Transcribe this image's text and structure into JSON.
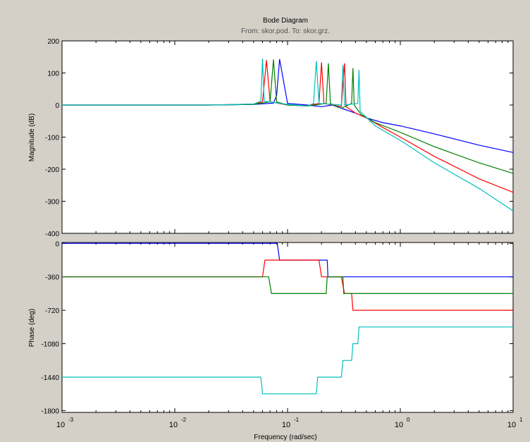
{
  "figure": {
    "background": "#d4d0c8",
    "title": "Bode Diagram",
    "subtitle": "From: skor.pod.  To: skor.grz.",
    "xlabel": "Frequency  (rad/sec)"
  },
  "chart_data": [
    {
      "type": "line",
      "name": "magnitude",
      "ylabel": "Magnitude (dB)",
      "xscale": "log",
      "xlim": [
        0.001,
        10
      ],
      "ylim": [
        -400,
        200
      ],
      "yticks": [
        -400,
        -300,
        -200,
        -100,
        0,
        100,
        200
      ],
      "xticks": [
        0.001,
        0.01,
        0.1,
        1,
        10
      ],
      "xtick_labels": [
        [
          "10",
          "-3"
        ],
        [
          "10",
          "-2"
        ],
        [
          "10",
          "-1"
        ],
        [
          "10",
          "0"
        ],
        [
          "10",
          "1"
        ]
      ],
      "grid": false,
      "series": [
        {
          "color": "#0000ff",
          "x": [
            0.001,
            0.02,
            0.05,
            0.075,
            0.08,
            0.085,
            0.1,
            0.15,
            0.2,
            0.25,
            0.3,
            0.4,
            0.5,
            0.7,
            1,
            2,
            5,
            10
          ],
          "y": [
            0,
            0,
            2,
            6,
            30,
            143,
            5,
            0,
            -5,
            0,
            -10,
            -25,
            -40,
            -55,
            -65,
            -90,
            -125,
            -148
          ]
        },
        {
          "color": "#ff0000",
          "x": [
            0.001,
            0.02,
            0.05,
            0.06,
            0.065,
            0.07,
            0.1,
            0.15,
            0.19,
            0.2,
            0.21,
            0.3,
            0.32,
            0.33,
            0.4,
            0.5,
            0.7,
            1,
            2,
            5,
            10
          ],
          "y": [
            0,
            0,
            3,
            10,
            140,
            10,
            0,
            -2,
            5,
            133,
            5,
            -5,
            130,
            -5,
            -25,
            -40,
            -70,
            -100,
            -160,
            -230,
            -272
          ]
        },
        {
          "color": "#008000",
          "x": [
            0.001,
            0.02,
            0.05,
            0.07,
            0.075,
            0.08,
            0.1,
            0.15,
            0.22,
            0.23,
            0.24,
            0.3,
            0.37,
            0.38,
            0.39,
            0.45,
            0.6,
            1,
            2,
            5,
            10
          ],
          "y": [
            0,
            0,
            2,
            10,
            142,
            10,
            0,
            -3,
            5,
            130,
            5,
            -10,
            5,
            115,
            0,
            -30,
            -55,
            -85,
            -130,
            -180,
            -213
          ]
        },
        {
          "color": "#00c0c0",
          "x": [
            0.001,
            0.02,
            0.05,
            0.058,
            0.06,
            0.062,
            0.1,
            0.15,
            0.17,
            0.18,
            0.19,
            0.3,
            0.31,
            0.32,
            0.42,
            0.43,
            0.44,
            0.6,
            1,
            2,
            5,
            10
          ],
          "y": [
            0,
            0,
            3,
            12,
            145,
            12,
            2,
            -3,
            5,
            137,
            5,
            0,
            125,
            0,
            5,
            110,
            -20,
            -65,
            -110,
            -180,
            -260,
            -330
          ]
        }
      ]
    },
    {
      "type": "line",
      "name": "phase",
      "ylabel": "Phase (deg)",
      "xscale": "log",
      "xlim": [
        0.001,
        10
      ],
      "ylim": [
        -1820,
        10
      ],
      "yticks": [
        -1800,
        -1440,
        -1080,
        -720,
        -360,
        0
      ],
      "xticks": [
        0.001,
        0.01,
        0.1,
        1,
        10
      ],
      "grid": false,
      "series": [
        {
          "color": "#0000ff",
          "x": [
            0.001,
            0.081,
            0.085,
            0.2,
            0.2,
            0.225,
            0.228,
            10
          ],
          "y": [
            0,
            0,
            -180,
            -180,
            -180,
            -180,
            -360,
            -360
          ]
        },
        {
          "color": "#ff0000",
          "x": [
            0.001,
            0.06,
            0.063,
            0.19,
            0.2,
            0.3,
            0.32,
            0.37,
            0.38,
            10
          ],
          "y": [
            -360,
            -360,
            -180,
            -180,
            -360,
            -360,
            -540,
            -540,
            -720,
            -720
          ]
        },
        {
          "color": "#008000",
          "x": [
            0.001,
            0.068,
            0.072,
            0.22,
            0.225,
            0.31,
            0.315,
            10
          ],
          "y": [
            -360,
            -360,
            -540,
            -540,
            -360,
            -360,
            -540,
            -540
          ]
        },
        {
          "color": "#00c0c0",
          "x": [
            0.001,
            0.058,
            0.06,
            0.18,
            0.185,
            0.3,
            0.31,
            0.37,
            0.38,
            0.42,
            0.43,
            10
          ],
          "y": [
            -1440,
            -1440,
            -1620,
            -1620,
            -1440,
            -1440,
            -1260,
            -1260,
            -1080,
            -1080,
            -900,
            -900
          ]
        }
      ]
    }
  ]
}
